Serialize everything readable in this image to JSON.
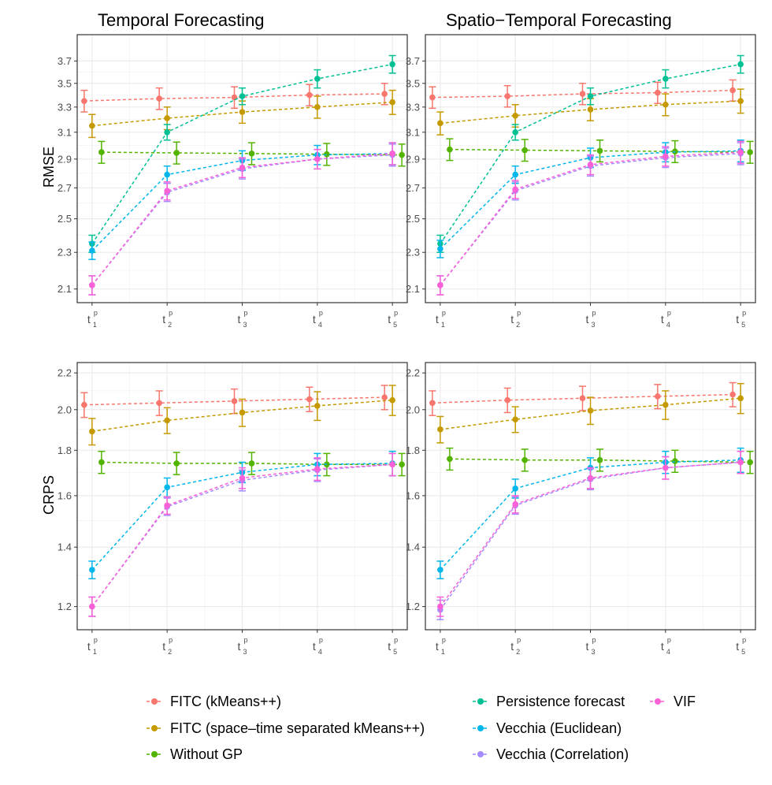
{
  "chart_data": {
    "type": "line",
    "row_labels": [
      "RMSE",
      "CRPS"
    ],
    "column_titles": [
      "Temporal Forecasting",
      "Spatio−Temporal Forecasting"
    ],
    "x_tick_base": "t",
    "x_tick_sup": "p",
    "x_tick_subs": [
      "1",
      "2",
      "3",
      "4",
      "5"
    ],
    "legend": {
      "columns": [
        [
          "FITC (kMeans++)",
          "FITC (space–time separated kMeans++)",
          "Without GP"
        ],
        [
          "Persistence forecast",
          "Vecchia (Euclidean)",
          "Vecchia (Correlation)"
        ],
        [
          "VIF"
        ]
      ]
    },
    "series_styles": [
      {
        "name": "FITC (kMeans++)",
        "color": "#F8766D"
      },
      {
        "name": "FITC (space–time separated kMeans++)",
        "color": "#C49A00"
      },
      {
        "name": "Without GP",
        "color": "#53B400"
      },
      {
        "name": "Persistence forecast",
        "color": "#00C094"
      },
      {
        "name": "Vecchia (Euclidean)",
        "color": "#00B6EB"
      },
      {
        "name": "Vecchia (Correlation)",
        "color": "#A58AFF"
      },
      {
        "name": "VIF",
        "color": "#FB61D7"
      }
    ],
    "panels": [
      {
        "title": "Temporal Forecasting",
        "ylabel": "RMSE",
        "y_scale": "log",
        "ylim": [
          2.03,
          3.95
        ],
        "y_ticks": [
          "2.1",
          "2.3",
          "2.5",
          "2.7",
          "2.9",
          "3.1",
          "3.3",
          "3.5",
          "3.7"
        ],
        "series": [
          {
            "name": "FITC (kMeans++)",
            "values": [
              3.35,
              3.37,
              3.38,
              3.4,
              3.41
            ],
            "errors": [
              0.09,
              0.09,
              0.09,
              0.09,
              0.09
            ]
          },
          {
            "name": "FITC (space–time separated kMeans++)",
            "values": [
              3.15,
              3.21,
              3.26,
              3.3,
              3.34
            ],
            "errors": [
              0.09,
              0.09,
              0.09,
              0.09,
              0.1
            ]
          },
          {
            "name": "Without GP",
            "values": [
              2.95,
              2.945,
              2.94,
              2.935,
              2.93
            ],
            "errors": [
              0.08,
              0.08,
              0.08,
              0.08,
              0.08
            ]
          },
          {
            "name": "Persistence forecast",
            "values": [
              2.35,
              3.1,
              3.39,
              3.54,
              3.67
            ],
            "errors": [
              0.05,
              0.06,
              0.07,
              0.08,
              0.08
            ]
          },
          {
            "name": "Vecchia (Euclidean)",
            "values": [
              2.31,
              2.79,
              2.89,
              2.93,
              2.94
            ],
            "errors": [
              0.05,
              0.06,
              0.07,
              0.07,
              0.08
            ]
          },
          {
            "name": "Vecchia (Correlation)",
            "values": [
              2.12,
              2.67,
              2.83,
              2.9,
              2.93
            ],
            "errors": [
              0.05,
              0.06,
              0.07,
              0.07,
              0.08
            ]
          },
          {
            "name": "VIF",
            "values": [
              2.12,
              2.68,
              2.84,
              2.9,
              2.94
            ],
            "errors": [
              0.05,
              0.06,
              0.07,
              0.07,
              0.08
            ]
          }
        ]
      },
      {
        "title": "Spatio−Temporal Forecasting",
        "ylabel": "RMSE",
        "y_scale": "log",
        "ylim": [
          2.03,
          3.95
        ],
        "y_ticks": [
          "2.1",
          "2.3",
          "2.5",
          "2.7",
          "2.9",
          "3.1",
          "3.3",
          "3.5",
          "3.7"
        ],
        "series": [
          {
            "name": "FITC (kMeans++)",
            "values": [
              3.38,
              3.39,
              3.41,
              3.42,
              3.44
            ],
            "errors": [
              0.09,
              0.09,
              0.09,
              0.09,
              0.09
            ]
          },
          {
            "name": "FITC (space–time separated kMeans++)",
            "values": [
              3.17,
              3.23,
              3.28,
              3.32,
              3.35
            ],
            "errors": [
              0.09,
              0.09,
              0.09,
              0.09,
              0.1
            ]
          },
          {
            "name": "Without GP",
            "values": [
              2.97,
              2.965,
              2.96,
              2.955,
              2.95
            ],
            "errors": [
              0.08,
              0.08,
              0.08,
              0.08,
              0.08
            ]
          },
          {
            "name": "Persistence forecast",
            "values": [
              2.35,
              3.1,
              3.39,
              3.54,
              3.67
            ],
            "errors": [
              0.05,
              0.06,
              0.07,
              0.08,
              0.08
            ]
          },
          {
            "name": "Vecchia (Euclidean)",
            "values": [
              2.32,
              2.79,
              2.91,
              2.95,
              2.96
            ],
            "errors": [
              0.05,
              0.06,
              0.07,
              0.07,
              0.08
            ]
          },
          {
            "name": "Vecchia (Correlation)",
            "values": [
              2.12,
              2.68,
              2.85,
              2.91,
              2.94
            ],
            "errors": [
              0.05,
              0.06,
              0.07,
              0.07,
              0.08
            ]
          },
          {
            "name": "VIF",
            "values": [
              2.12,
              2.69,
              2.86,
              2.92,
              2.95
            ],
            "errors": [
              0.05,
              0.06,
              0.07,
              0.07,
              0.08
            ]
          }
        ]
      },
      {
        "title": "Temporal Forecasting",
        "ylabel": "CRPS",
        "y_scale": "log",
        "ylim": [
          1.13,
          2.26
        ],
        "y_ticks": [
          "1.2",
          "1.4",
          "1.6",
          "1.8",
          "2.0",
          "2.2"
        ],
        "series": [
          {
            "name": "FITC (kMeans++)",
            "values": [
              2.025,
              2.035,
              2.045,
              2.055,
              2.065
            ],
            "errors": [
              0.065,
              0.065,
              0.065,
              0.065,
              0.065
            ]
          },
          {
            "name": "FITC (space–time separated kMeans++)",
            "values": [
              1.89,
              1.945,
              1.985,
              2.02,
              2.05
            ],
            "errors": [
              0.065,
              0.065,
              0.07,
              0.075,
              0.08
            ]
          },
          {
            "name": "Without GP",
            "values": [
              1.745,
              1.74,
              1.74,
              1.735,
              1.735
            ],
            "errors": [
              0.05,
              0.05,
              0.05,
              0.05,
              0.05
            ]
          },
          {
            "name": "Vecchia (Euclidean)",
            "values": [
              1.32,
              1.635,
              1.7,
              1.735,
              1.74
            ],
            "errors": [
              0.03,
              0.04,
              0.045,
              0.05,
              0.055
            ]
          },
          {
            "name": "Vecchia (Correlation)",
            "values": [
              1.2,
              1.555,
              1.665,
              1.71,
              1.735
            ],
            "errors": [
              0.03,
              0.035,
              0.045,
              0.05,
              0.05
            ]
          },
          {
            "name": "VIF",
            "values": [
              1.2,
              1.56,
              1.675,
              1.715,
              1.735
            ],
            "errors": [
              0.03,
              0.035,
              0.045,
              0.05,
              0.05
            ]
          }
        ]
      },
      {
        "title": "Spatio−Temporal Forecasting",
        "ylabel": "CRPS",
        "y_scale": "log",
        "ylim": [
          1.13,
          2.26
        ],
        "y_ticks": [
          "1.2",
          "1.4",
          "1.6",
          "1.8",
          "2.0",
          "2.2"
        ],
        "series": [
          {
            "name": "FITC (kMeans++)",
            "values": [
              2.035,
              2.05,
              2.06,
              2.07,
              2.08
            ],
            "errors": [
              0.065,
              0.065,
              0.065,
              0.065,
              0.065
            ]
          },
          {
            "name": "FITC (space–time separated kMeans++)",
            "values": [
              1.9,
              1.95,
              1.995,
              2.025,
              2.06
            ],
            "errors": [
              0.065,
              0.065,
              0.07,
              0.075,
              0.08
            ]
          },
          {
            "name": "Without GP",
            "values": [
              1.76,
              1.755,
              1.755,
              1.75,
              1.745
            ],
            "errors": [
              0.05,
              0.05,
              0.05,
              0.05,
              0.05
            ]
          },
          {
            "name": "Vecchia (Euclidean)",
            "values": [
              1.32,
              1.63,
              1.72,
              1.745,
              1.755
            ],
            "errors": [
              0.03,
              0.04,
              0.045,
              0.05,
              0.055
            ]
          },
          {
            "name": "Vecchia (Correlation)",
            "values": [
              1.19,
              1.56,
              1.67,
              1.72,
              1.745
            ],
            "errors": [
              0.03,
              0.035,
              0.045,
              0.05,
              0.05
            ]
          },
          {
            "name": "VIF",
            "values": [
              1.2,
              1.565,
              1.675,
              1.72,
              1.745
            ],
            "errors": [
              0.03,
              0.035,
              0.045,
              0.05,
              0.05
            ]
          }
        ]
      }
    ]
  }
}
